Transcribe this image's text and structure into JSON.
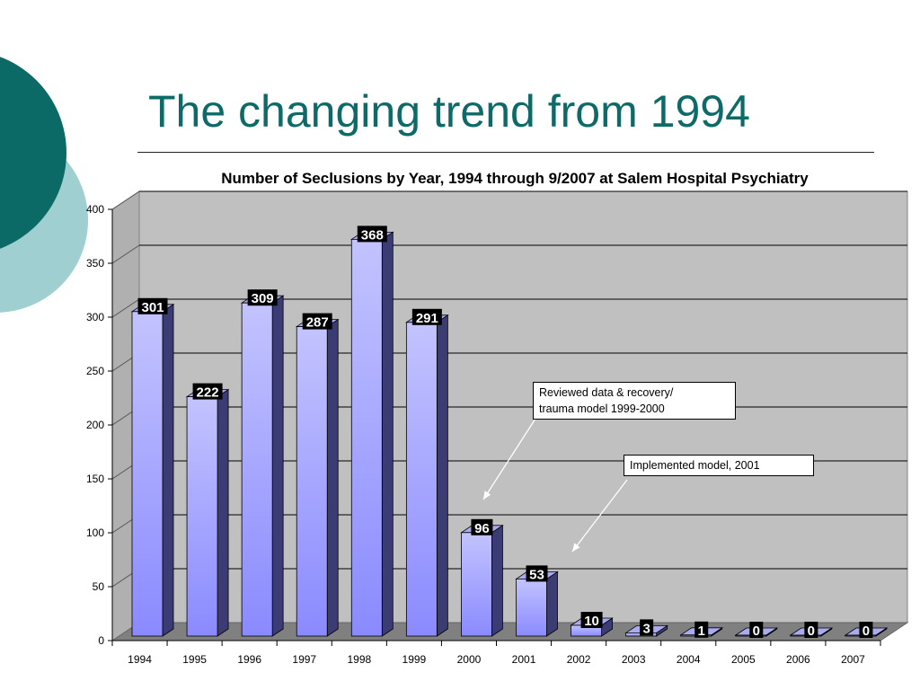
{
  "slide": {
    "title": "The changing trend from 1994",
    "colors": {
      "title": "#0e6a68",
      "decor_dark": "#0b6a66",
      "decor_light": "#9fcfd0"
    }
  },
  "chart_data": {
    "type": "bar",
    "style": "3d",
    "title": "Number of Seclusions by Year, 1994 through 9/2007 at Salem Hospital Psychiatry",
    "xlabel": "",
    "ylabel": "",
    "categories": [
      "1994",
      "1995",
      "1996",
      "1997",
      "1998",
      "1999",
      "2000",
      "2001",
      "2002",
      "2003",
      "2004",
      "2005",
      "2006",
      "2007"
    ],
    "values": [
      301,
      222,
      309,
      287,
      368,
      291,
      96,
      53,
      10,
      3,
      1,
      0,
      0,
      0
    ],
    "data_labels": [
      "301",
      "222",
      "309",
      "287",
      "368",
      "291",
      "96",
      "53",
      "10",
      "3",
      "1",
      "0",
      "0",
      "0"
    ],
    "ylim": [
      0,
      400
    ],
    "yticks": [
      0,
      50,
      100,
      150,
      200,
      250,
      300,
      350,
      400
    ],
    "ytick_labels": [
      "0",
      "50",
      "100",
      "150",
      "200",
      "250",
      "300",
      "350",
      "400"
    ],
    "grid": true,
    "legend": "none",
    "colors": {
      "bar": "#9999ff",
      "plot_bg": "#c0c0c0",
      "label_bg": "#000000"
    },
    "annotations": [
      {
        "lines": [
          "Reviewed data & recovery/",
          "trauma model 1999-2000"
        ],
        "points_to": "2000"
      },
      {
        "lines": [
          "Implemented model, 2001"
        ],
        "points_to": "2001"
      }
    ]
  }
}
